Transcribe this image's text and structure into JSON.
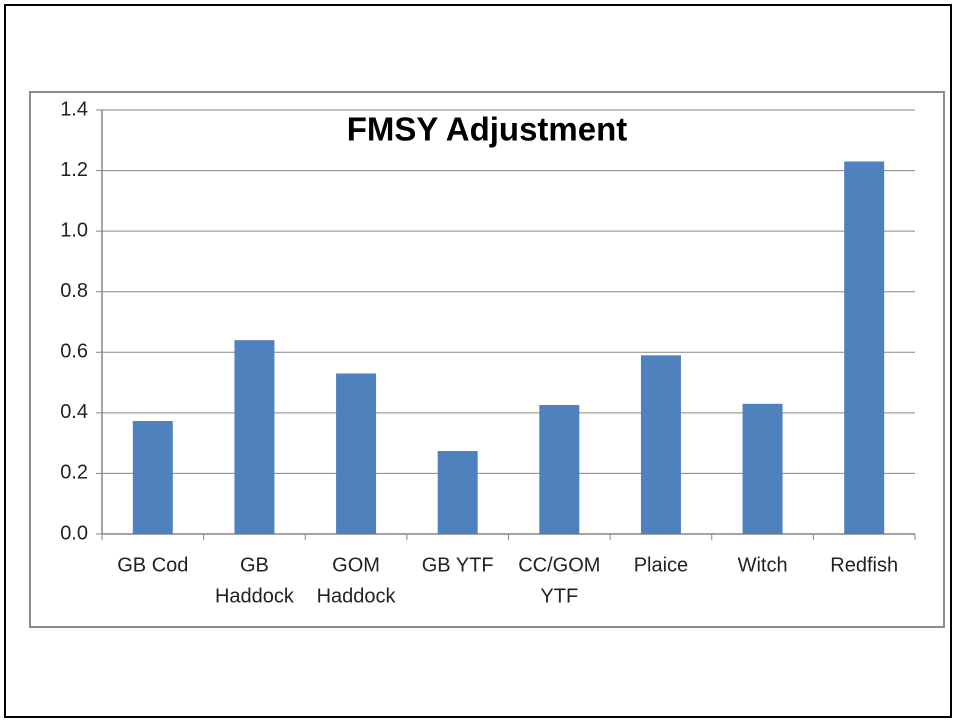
{
  "chart_data": {
    "type": "bar",
    "title": "FMSY Adjustment",
    "categories": [
      [
        "GB Cod"
      ],
      [
        "GB",
        "Haddock"
      ],
      [
        "GOM",
        "Haddock"
      ],
      [
        "GB YTF"
      ],
      [
        "CC/GOM",
        "YTF"
      ],
      [
        "Plaice"
      ],
      [
        "Witch"
      ],
      [
        "Redfish"
      ]
    ],
    "values": [
      0.373,
      0.64,
      0.53,
      0.274,
      0.426,
      0.59,
      0.43,
      1.23
    ],
    "color": "#4f81bd",
    "ylim": [
      0,
      1.4
    ],
    "yticks": [
      {
        "value": 0,
        "label": "0.0"
      },
      0.2,
      0.4,
      0.6,
      0.8,
      {
        "value": 1,
        "label": "1.0"
      },
      1.2,
      1.4
    ],
    "grid": true
  }
}
